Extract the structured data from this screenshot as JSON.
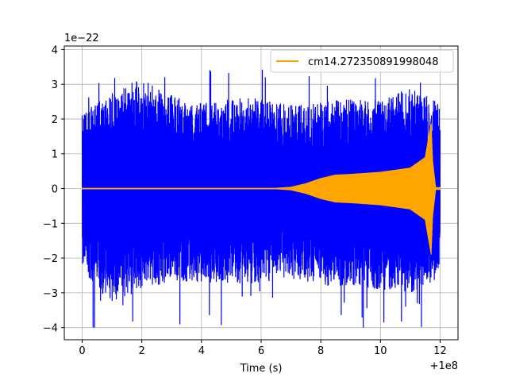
{
  "chart_data": {
    "type": "line",
    "title": "",
    "xlabel": "Time (s)",
    "ylabel": "",
    "x_offset_label": "+1e8",
    "y_scale_label": "1e−22",
    "xlim": [
      -0.6,
      12.6
    ],
    "ylim": [
      -4.35,
      4.1
    ],
    "x_ticks": [
      0,
      2,
      4,
      6,
      8,
      10,
      12
    ],
    "x_tick_labels": [
      "0",
      "2",
      "4",
      "6",
      "8",
      "10",
      "12"
    ],
    "y_ticks": [
      -4,
      -3,
      -2,
      -1,
      0,
      1,
      2,
      3,
      4
    ],
    "y_tick_labels": [
      "−4",
      "−3",
      "−2",
      "−1",
      "0",
      "1",
      "2",
      "3",
      "4"
    ],
    "grid": true,
    "legend_position": "top-right",
    "series": [
      {
        "name": "",
        "color": "#0000ff",
        "kind": "noise",
        "x": [
          0.0,
          1.0,
          2.0,
          3.0,
          4.0,
          5.0,
          6.0,
          7.0,
          8.0,
          9.0,
          10.0,
          11.0,
          12.0
        ],
        "upper_envelope": [
          2.2,
          2.8,
          3.2,
          2.7,
          2.5,
          2.6,
          2.6,
          2.4,
          2.5,
          2.6,
          2.6,
          2.9,
          2.5
        ],
        "lower_envelope": [
          -2.5,
          -3.3,
          -2.9,
          -2.7,
          -2.7,
          -2.8,
          -2.7,
          -2.6,
          -2.8,
          -2.8,
          -2.9,
          -3.0,
          -2.6
        ],
        "max": 3.7,
        "min": -4.0
      },
      {
        "name": "cm14.272350891998048",
        "color": "#ffa500",
        "kind": "chirp",
        "x": [
          0.0,
          6.5,
          7.0,
          7.5,
          8.0,
          8.5,
          9.0,
          10.0,
          11.0,
          11.5,
          11.7,
          11.75,
          11.85,
          12.0
        ],
        "amplitude": [
          0.02,
          0.02,
          0.05,
          0.15,
          0.3,
          0.4,
          0.42,
          0.48,
          0.6,
          0.9,
          1.9,
          0.8,
          0.04,
          0.04
        ]
      }
    ]
  }
}
